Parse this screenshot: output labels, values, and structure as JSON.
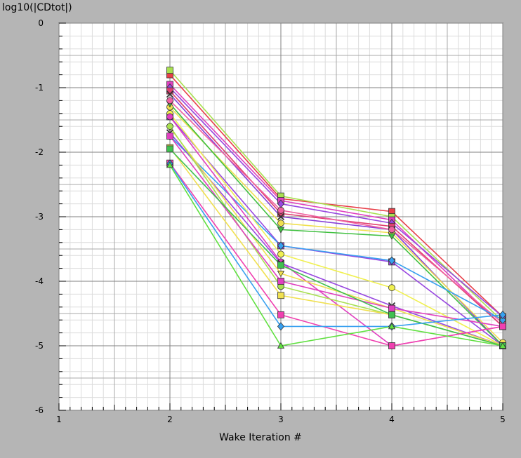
{
  "chart_data": {
    "type": "line",
    "ylabel": "log10(|CDtot|)",
    "xlabel": "Wake Iteration #",
    "xlim": [
      1,
      5
    ],
    "ylim": [
      -6,
      0
    ],
    "x_ticks": [
      "1",
      "2",
      "3",
      "4",
      "5"
    ],
    "y_ticks": [
      "0",
      "-1",
      "-2",
      "-3",
      "-4",
      "-5",
      "-6"
    ],
    "grid": true,
    "x": [
      2,
      3,
      4,
      5
    ],
    "series": [
      {
        "color": "#e8404a",
        "marker": "square",
        "values": [
          -0.8,
          -2.72,
          -2.92,
          -4.55
        ]
      },
      {
        "color": "#a8e050",
        "marker": "square",
        "values": [
          -0.73,
          -2.68,
          -3.0,
          -4.62
        ]
      },
      {
        "color": "#e040c0",
        "marker": "square",
        "values": [
          -0.95,
          -2.75,
          -3.05,
          -4.7
        ]
      },
      {
        "color": "#9848e0",
        "marker": "diamond",
        "values": [
          -1.0,
          -2.8,
          -3.1,
          -4.55
        ]
      },
      {
        "color": "#e04070",
        "marker": "square",
        "values": [
          -1.05,
          -2.95,
          -3.15,
          -4.7
        ]
      },
      {
        "color": "#8840d8",
        "marker": "x",
        "values": [
          -1.1,
          -3.0,
          -3.2,
          -5.0
        ]
      },
      {
        "color": "#f0e050",
        "marker": "circle",
        "values": [
          -1.3,
          -3.1,
          -3.25,
          -4.95
        ]
      },
      {
        "color": "#40c040",
        "marker": "tri-down",
        "values": [
          -1.25,
          -3.2,
          -3.3,
          -5.0
        ]
      },
      {
        "color": "#f060a0",
        "marker": "circle",
        "values": [
          -1.2,
          -2.9,
          -3.2,
          -4.65
        ]
      },
      {
        "color": "#9848e0",
        "marker": "square",
        "values": [
          -1.45,
          -3.45,
          -3.7,
          -5.0
        ]
      },
      {
        "color": "#38a0f0",
        "marker": "diamond",
        "values": [
          -1.75,
          -3.45,
          -3.68,
          -4.6
        ]
      },
      {
        "color": "#f0f050",
        "marker": "circle",
        "values": [
          -1.4,
          -3.58,
          -4.1,
          -5.0
        ]
      },
      {
        "color": "#e040c0",
        "marker": "circle",
        "values": [
          -1.45,
          -3.7,
          -5.0,
          -4.7
        ]
      },
      {
        "color": "#9848e0",
        "marker": "x",
        "values": [
          -1.7,
          -3.72,
          -4.38,
          -5.0
        ]
      },
      {
        "color": "#f0e050",
        "marker": "tri-down",
        "values": [
          -1.62,
          -3.88,
          -4.42,
          -5.0
        ]
      },
      {
        "color": "#a8e050",
        "marker": "circle",
        "values": [
          -1.6,
          -4.08,
          -4.52,
          -5.0
        ]
      },
      {
        "color": "#e040c0",
        "marker": "square",
        "values": [
          -1.75,
          -4.0,
          -4.42,
          -4.7
        ]
      },
      {
        "color": "#f0e050",
        "marker": "square",
        "values": [
          -1.93,
          -4.22,
          -4.52,
          -5.0
        ]
      },
      {
        "color": "#40c050",
        "marker": "square",
        "values": [
          -1.95,
          -3.75,
          -4.52,
          -5.0
        ]
      },
      {
        "color": "#f040b0",
        "marker": "square",
        "values": [
          -2.17,
          -4.52,
          -5.0,
          -4.7
        ]
      },
      {
        "color": "#38a0f0",
        "marker": "diamond",
        "values": [
          -2.18,
          -4.7,
          -4.7,
          -4.52
        ]
      },
      {
        "color": "#60e040",
        "marker": "tri-up",
        "values": [
          -2.2,
          -5.0,
          -4.7,
          -5.0
        ]
      }
    ]
  }
}
